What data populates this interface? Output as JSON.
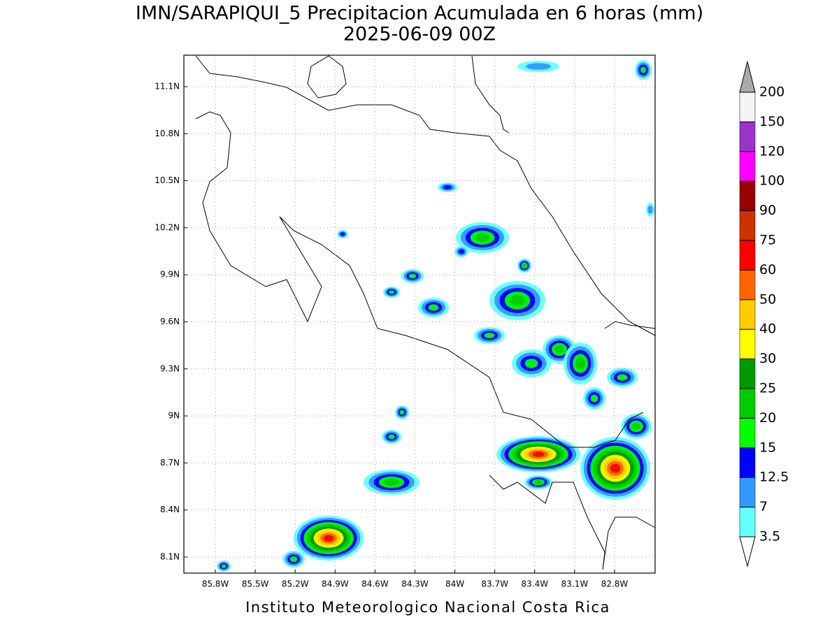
{
  "chart_data": {
    "type": "map",
    "title": "IMN/SARAPIQUI_5 Precipitacion Acumulada en 6 horas (mm)",
    "subtitle": "2025-06-09 00Z",
    "footer": "Instituto Meteorologico Nacional Costa Rica",
    "xticks": [
      "85.8W",
      "85.5W",
      "85.2W",
      "84.9W",
      "84.6W",
      "84.3W",
      "84W",
      "83.7W",
      "83.4W",
      "83.1W",
      "82.8W"
    ],
    "yticks": [
      "11.1N",
      "10.8N",
      "10.5N",
      "10.2N",
      "9.9N",
      "9.6N",
      "9.3N",
      "9N",
      "8.7N",
      "8.4N",
      "8.1N"
    ],
    "grid": true,
    "colorbar": {
      "levels": [
        3.5,
        7,
        12.5,
        15,
        20,
        25,
        30,
        40,
        50,
        60,
        75,
        90,
        100,
        120,
        150,
        200
      ],
      "colors": [
        "#ffffff",
        "#66ffff",
        "#3399ff",
        "#0000ff",
        "#00ff00",
        "#00cc00",
        "#009900",
        "#ffff00",
        "#ffcc00",
        "#ff6600",
        "#ff0000",
        "#cc3300",
        "#990000",
        "#ff00ff",
        "#9933cc",
        "#f5f5f5",
        "#aaaaaa"
      ]
    }
  }
}
